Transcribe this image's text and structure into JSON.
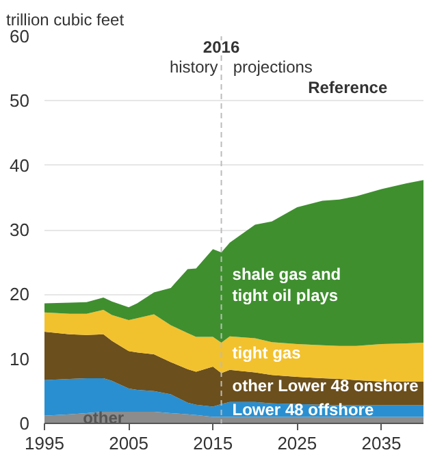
{
  "chart_data": {
    "type": "area",
    "stacked": true,
    "ylabel": "trillion cubic feet",
    "x": [
      1995,
      1998,
      2000,
      2002,
      2003,
      2005,
      2006,
      2008,
      2010,
      2012,
      2013,
      2015,
      2016,
      2017,
      2020,
      2022,
      2025,
      2028,
      2030,
      2032,
      2035,
      2038,
      2040
    ],
    "series": [
      {
        "name": "other",
        "color": "#8c8c8c",
        "values": [
          1.2,
          1.4,
          1.6,
          1.8,
          1.8,
          1.8,
          1.8,
          1.8,
          1.6,
          1.4,
          1.3,
          1.0,
          1.0,
          1.0,
          1.0,
          1.0,
          1.0,
          1.0,
          1.0,
          1.0,
          1.0,
          1.0,
          1.0
        ]
      },
      {
        "name": "Lower 48 offshore",
        "color": "#2a8fd0",
        "values": [
          5.5,
          5.5,
          5.4,
          5.2,
          4.8,
          3.6,
          3.4,
          3.2,
          2.9,
          1.8,
          1.6,
          1.6,
          2.0,
          2.3,
          2.3,
          2.1,
          2.0,
          1.9,
          1.8,
          1.8,
          1.8,
          1.8,
          1.8
        ]
      },
      {
        "name": "other Lower 48 onshore",
        "color": "#6b4f1d",
        "values": [
          7.5,
          6.9,
          6.7,
          6.8,
          6.2,
          5.8,
          5.8,
          5.7,
          5.0,
          5.2,
          5.1,
          6.2,
          4.8,
          5.0,
          4.6,
          4.4,
          4.2,
          4.1,
          4.1,
          3.9,
          3.7,
          3.7,
          3.7
        ]
      },
      {
        "name": "tight gas",
        "color": "#f2c12e",
        "values": [
          3.0,
          3.2,
          3.3,
          3.8,
          4.0,
          4.8,
          5.3,
          6.2,
          5.7,
          5.6,
          5.4,
          4.6,
          4.7,
          5.2,
          5.3,
          5.1,
          5.1,
          5.1,
          5.1,
          5.3,
          5.8,
          5.9,
          6.0
        ]
      },
      {
        "name": "shale gas and\ntight oil plays",
        "color": "#3f8f2f",
        "values": [
          1.4,
          1.7,
          1.8,
          1.9,
          2.1,
          2.0,
          2.3,
          3.4,
          5.8,
          9.9,
          10.6,
          13.6,
          14.0,
          14.5,
          17.6,
          18.7,
          21.2,
          22.4,
          22.7,
          23.2,
          24.0,
          24.8,
          25.2
        ]
      }
    ],
    "xlim": [
      1995,
      2040
    ],
    "xticks": [
      1995,
      2005,
      2015,
      2025,
      2035
    ],
    "ylim": [
      0,
      60
    ],
    "yticks": [
      0,
      10,
      20,
      30,
      40,
      50,
      60
    ],
    "grid": "y",
    "ref_lines": [
      {
        "axis": "x",
        "value": 2016,
        "label": "2016",
        "color": "#bbbbbb",
        "line_style": "dashed"
      }
    ],
    "annotations": [
      "history",
      "projections",
      "Reference"
    ]
  }
}
